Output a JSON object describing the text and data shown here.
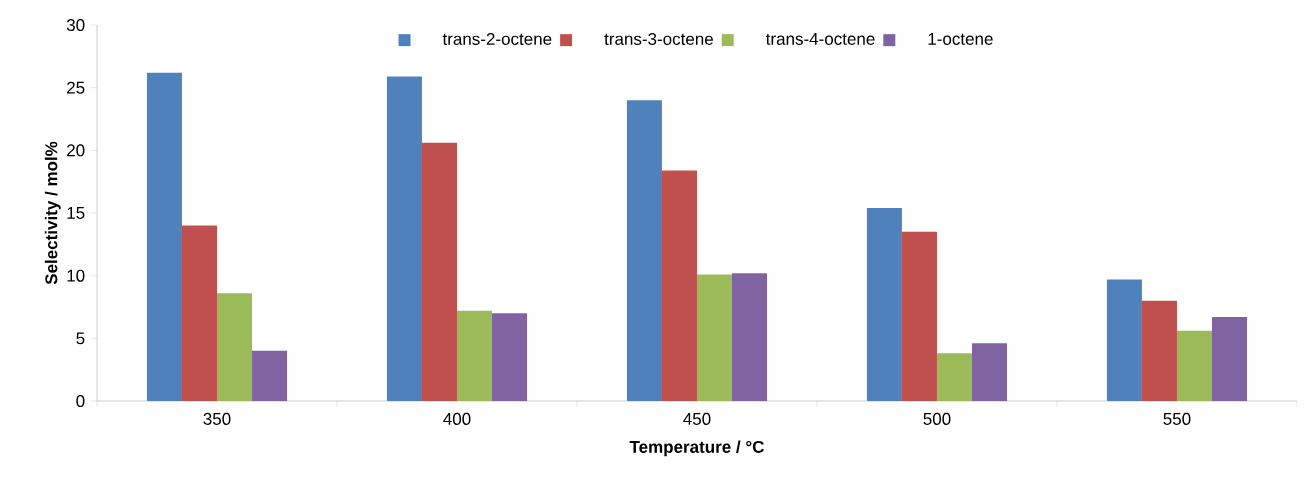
{
  "chart_data": {
    "type": "bar",
    "xlabel": "Temperature / °C",
    "ylabel": "Selectivity / mol%",
    "categories": [
      "350",
      "400",
      "450",
      "500",
      "550"
    ],
    "series": [
      {
        "name": "trans-2-octene",
        "color": "#4f81bd",
        "values": [
          26.2,
          25.9,
          24.0,
          15.4,
          9.7
        ]
      },
      {
        "name": "trans-3-octene",
        "color": "#c0504d",
        "values": [
          14.0,
          20.6,
          18.4,
          13.5,
          8.0
        ]
      },
      {
        "name": "trans-4-octene",
        "color": "#9bbb59",
        "values": [
          8.6,
          7.2,
          10.1,
          3.8,
          5.6
        ]
      },
      {
        "name": "1-octene",
        "color": "#8064a2",
        "values": [
          4.0,
          7.0,
          10.2,
          4.6,
          6.7
        ]
      }
    ],
    "ylim": [
      0,
      30
    ],
    "yticks": [
      0,
      5,
      10,
      15,
      20,
      25,
      30
    ],
    "legend": "top"
  }
}
